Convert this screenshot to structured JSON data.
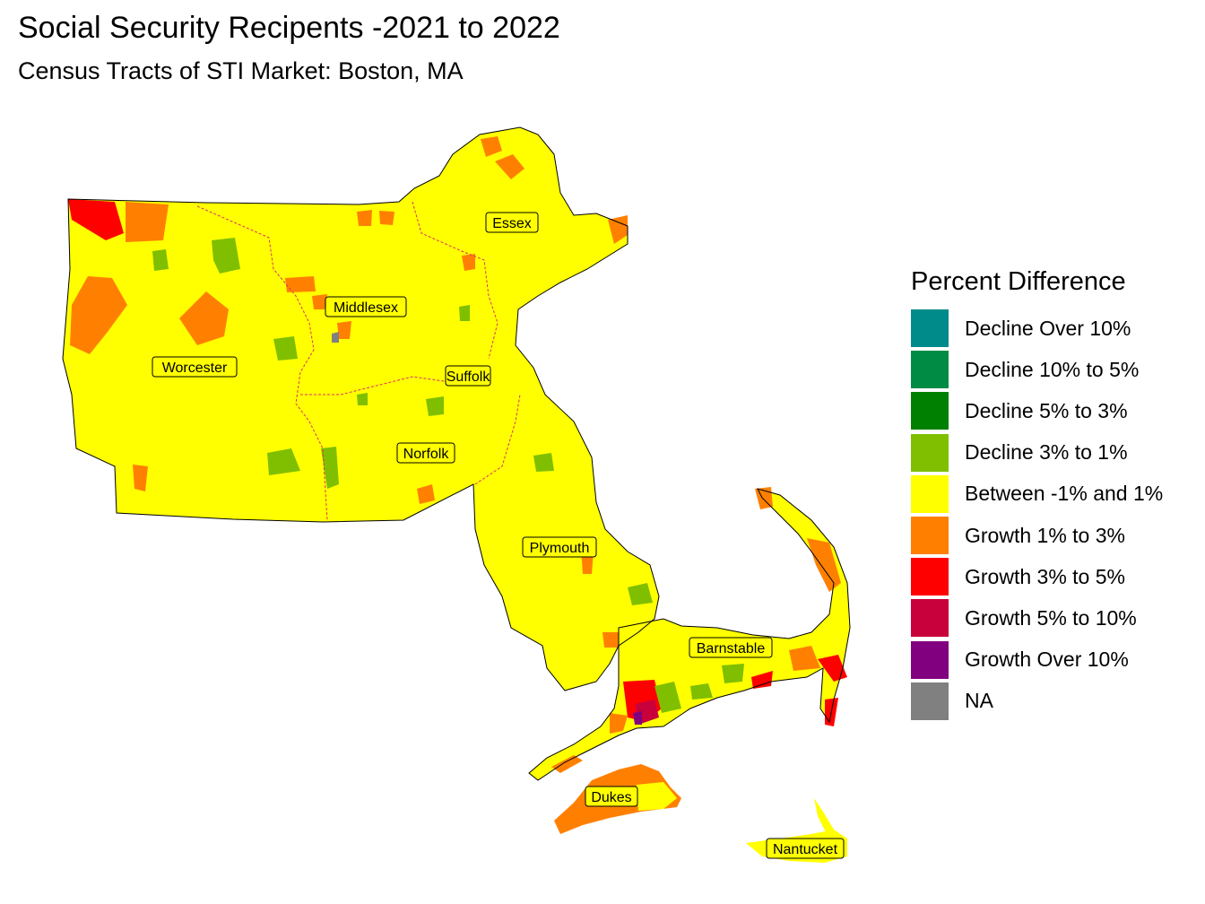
{
  "header": {
    "title": "Social Security Recipents -2021 to 2022",
    "subtitle": "Census Tracts of STI Market: Boston, MA"
  },
  "legend": {
    "title": "Percent Difference",
    "items": [
      {
        "label": "Decline Over 10%",
        "color": "#008B8B"
      },
      {
        "label": "Decline 10% to 5%",
        "color": "#008B45"
      },
      {
        "label": "Decline 5% to 3%",
        "color": "#008000"
      },
      {
        "label": "Decline 3% to 1%",
        "color": "#7FBF00"
      },
      {
        "label": "Between -1% and 1%",
        "color": "#FFFF00"
      },
      {
        "label": "Growth 1% to 3%",
        "color": "#FF8000"
      },
      {
        "label": "Growth 3% to 5%",
        "color": "#FF0000"
      },
      {
        "label": "Growth 5% to 10%",
        "color": "#C8003C"
      },
      {
        "label": "Growth Over 10%",
        "color": "#800080"
      },
      {
        "label": "NA",
        "color": "#808080"
      }
    ]
  },
  "counties": {
    "worcester": "Worcester",
    "middlesex": "Middlesex",
    "essex": "Essex",
    "suffolk": "Suffolk",
    "norfolk": "Norfolk",
    "plymouth": "Plymouth",
    "barnstable": "Barnstable",
    "dukes": "Dukes",
    "nantucket": "Nantucket"
  }
}
